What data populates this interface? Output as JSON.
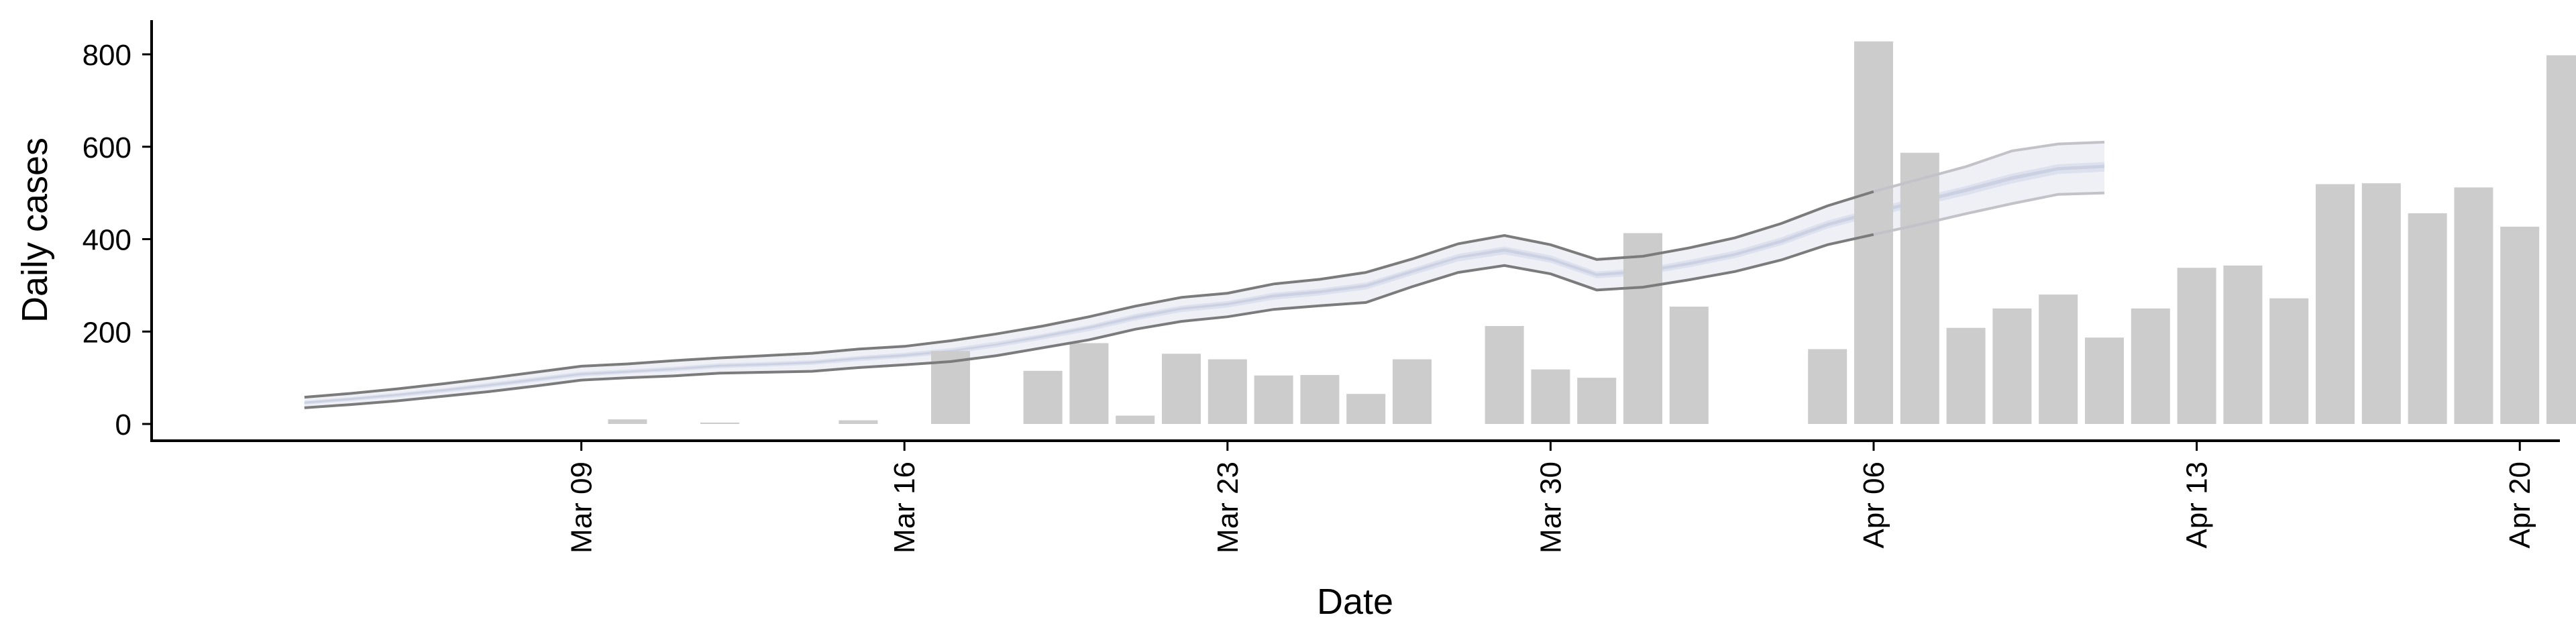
{
  "chart_data": {
    "type": "bar",
    "title": "",
    "xlabel": "Date",
    "ylabel": "Daily cases",
    "x_start": "2020-03-02",
    "xlim": [
      "2020-03-01",
      "2020-04-24"
    ],
    "ylim": [
      -38,
      870
    ],
    "grid": false,
    "legend": "none",
    "x_ticks": [
      {
        "date": "2020-03-09",
        "label": "Mar 09"
      },
      {
        "date": "2020-03-16",
        "label": "Mar 16"
      },
      {
        "date": "2020-03-23",
        "label": "Mar 23"
      },
      {
        "date": "2020-03-30",
        "label": "Mar 30"
      },
      {
        "date": "2020-04-06",
        "label": "Apr 06"
      },
      {
        "date": "2020-04-13",
        "label": "Apr 13"
      },
      {
        "date": "2020-04-20",
        "label": "Apr 20"
      }
    ],
    "y_ticks": [
      0,
      200,
      400,
      600,
      800
    ],
    "bars": [
      {
        "date": "2020-03-10",
        "value": 10
      },
      {
        "date": "2020-03-12",
        "value": 3
      },
      {
        "date": "2020-03-15",
        "value": 8
      },
      {
        "date": "2020-03-17",
        "value": 158
      },
      {
        "date": "2020-03-19",
        "value": 115
      },
      {
        "date": "2020-03-20",
        "value": 175
      },
      {
        "date": "2020-03-21",
        "value": 18
      },
      {
        "date": "2020-03-22",
        "value": 152
      },
      {
        "date": "2020-03-23",
        "value": 140
      },
      {
        "date": "2020-03-24",
        "value": 105
      },
      {
        "date": "2020-03-25",
        "value": 106
      },
      {
        "date": "2020-03-26",
        "value": 65
      },
      {
        "date": "2020-03-27",
        "value": 140
      },
      {
        "date": "2020-03-29",
        "value": 212
      },
      {
        "date": "2020-03-30",
        "value": 118
      },
      {
        "date": "2020-03-31",
        "value": 100
      },
      {
        "date": "2020-04-01",
        "value": 413
      },
      {
        "date": "2020-04-02",
        "value": 254
      },
      {
        "date": "2020-04-05",
        "value": 162
      },
      {
        "date": "2020-04-06",
        "value": 828
      },
      {
        "date": "2020-04-07",
        "value": 587
      },
      {
        "date": "2020-04-08",
        "value": 208
      },
      {
        "date": "2020-04-09",
        "value": 250
      },
      {
        "date": "2020-04-10",
        "value": 280
      },
      {
        "date": "2020-04-11",
        "value": 187
      },
      {
        "date": "2020-04-12",
        "value": 250
      },
      {
        "date": "2020-04-13",
        "value": 338
      },
      {
        "date": "2020-04-14",
        "value": 343
      },
      {
        "date": "2020-04-15",
        "value": 272
      },
      {
        "date": "2020-04-16",
        "value": 519
      },
      {
        "date": "2020-04-17",
        "value": 521
      },
      {
        "date": "2020-04-18",
        "value": 456
      },
      {
        "date": "2020-04-19",
        "value": 512
      },
      {
        "date": "2020-04-20",
        "value": 427
      },
      {
        "date": "2020-04-21",
        "value": 798
      }
    ],
    "band_start": "2020-03-03",
    "band_estimate_from": "2020-04-06",
    "bands": {
      "outer_lower": [
        35,
        42,
        50,
        60,
        70,
        82,
        95,
        100,
        104,
        110,
        112,
        114,
        122,
        128,
        135,
        148,
        165,
        182,
        205,
        222,
        232,
        248,
        256,
        263,
        297,
        328,
        343,
        325,
        290,
        296,
        312,
        330,
        355,
        388,
        410,
        432,
        455,
        477,
        497,
        500
      ],
      "outer_upper": [
        58,
        66,
        76,
        87,
        99,
        112,
        125,
        130,
        137,
        143,
        148,
        153,
        162,
        168,
        180,
        195,
        212,
        232,
        255,
        274,
        283,
        303,
        313,
        328,
        357,
        390,
        408,
        388,
        356,
        363,
        381,
        403,
        434,
        472,
        503,
        530,
        557,
        591,
        606,
        610
      ],
      "mid_lower": [
        42,
        50,
        58,
        68,
        79,
        91,
        103,
        109,
        114,
        121,
        124,
        128,
        136,
        143,
        152,
        166,
        183,
        201,
        224,
        242,
        252,
        269,
        278,
        291,
        322,
        352,
        367,
        349,
        315,
        322,
        339,
        359,
        387,
        423,
        449,
        472,
        495,
        521,
        541,
        546
      ],
      "mid_upper": [
        50,
        58,
        67,
        77,
        89,
        101,
        113,
        118,
        124,
        131,
        134,
        138,
        147,
        154,
        164,
        178,
        195,
        214,
        238,
        256,
        266,
        284,
        293,
        306,
        337,
        368,
        384,
        365,
        330,
        337,
        355,
        375,
        404,
        440,
        467,
        491,
        515,
        542,
        562,
        567
      ],
      "inner_lower": [
        44,
        52,
        61,
        71,
        82,
        94,
        106,
        111,
        117,
        124,
        127,
        131,
        140,
        146,
        156,
        170,
        187,
        206,
        228,
        247,
        257,
        274,
        283,
        296,
        327,
        358,
        373,
        354,
        320,
        327,
        344,
        364,
        392,
        428,
        455,
        478,
        502,
        528,
        549,
        554
      ],
      "inner_upper": [
        48,
        56,
        65,
        75,
        86,
        98,
        110,
        115,
        121,
        128,
        131,
        135,
        144,
        151,
        160,
        174,
        192,
        211,
        234,
        252,
        262,
        280,
        289,
        302,
        333,
        363,
        380,
        360,
        326,
        333,
        350,
        370,
        399,
        435,
        462,
        485,
        510,
        536,
        556,
        561
      ]
    },
    "colors": {
      "bars": "#cccccc",
      "band_outer": "#eef0f6",
      "band_mid": "#dde1ee",
      "band_inner": "#cbd0e2",
      "estimate_edge": "#7b7b7b",
      "forecast_edge": "#c2c2c8",
      "axis": "#000000"
    }
  }
}
